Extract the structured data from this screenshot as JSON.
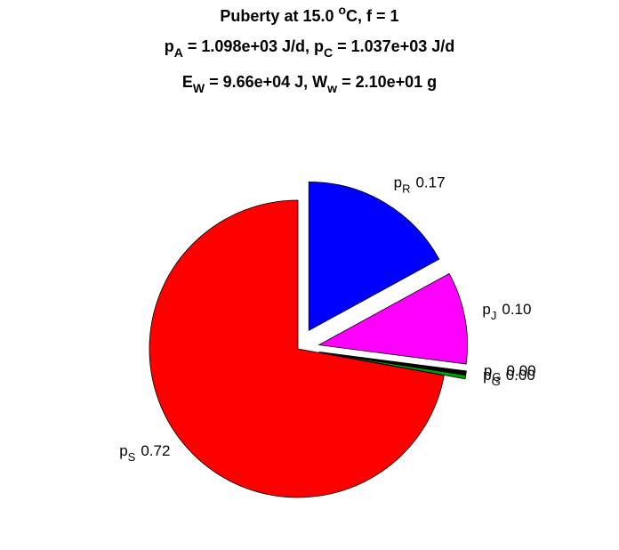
{
  "chart_data": {
    "type": "pie",
    "title": [
      [
        {
          "text": "Puberty at 15.0 "
        },
        {
          "text": "o",
          "script": "sup"
        },
        {
          "text": "C, f = 1"
        }
      ],
      [
        {
          "text": "p"
        },
        {
          "text": "A",
          "script": "sub"
        },
        {
          "text": " = 1.098e+03 J/d,  p"
        },
        {
          "text": "C",
          "script": "sub"
        },
        {
          "text": " = 1.037e+03 J/d"
        }
      ],
      [
        {
          "text": "E"
        },
        {
          "text": "W",
          "script": "sub"
        },
        {
          "text": " = 9.66e+04 J, W"
        },
        {
          "text": "w",
          "script": "sub"
        },
        {
          "text": " = 2.10e+01 g"
        }
      ]
    ],
    "categories": [
      [
        {
          "text": "p"
        },
        {
          "text": "R",
          "script": "sub"
        }
      ],
      [
        {
          "text": "p"
        },
        {
          "text": "J",
          "script": "sub"
        }
      ],
      [
        {
          "text": "p"
        },
        {
          "text": "G",
          "script": "sub"
        }
      ],
      [
        {
          "text": "p"
        },
        {
          "text": "G",
          "script": "sub"
        }
      ],
      [
        {
          "text": "p"
        },
        {
          "text": "S",
          "script": "sub"
        }
      ]
    ],
    "values": [
      0.17,
      0.1,
      0.004,
      0.004,
      0.72
    ],
    "value_labels": [
      "0.17",
      "0.10",
      "0.00",
      "0.00",
      "0.72"
    ],
    "colors": [
      "#0000ff",
      "#ff00ff",
      "#000000",
      "#00a000",
      "#ff0000"
    ],
    "explode": [
      true,
      true,
      true,
      true,
      false
    ]
  }
}
